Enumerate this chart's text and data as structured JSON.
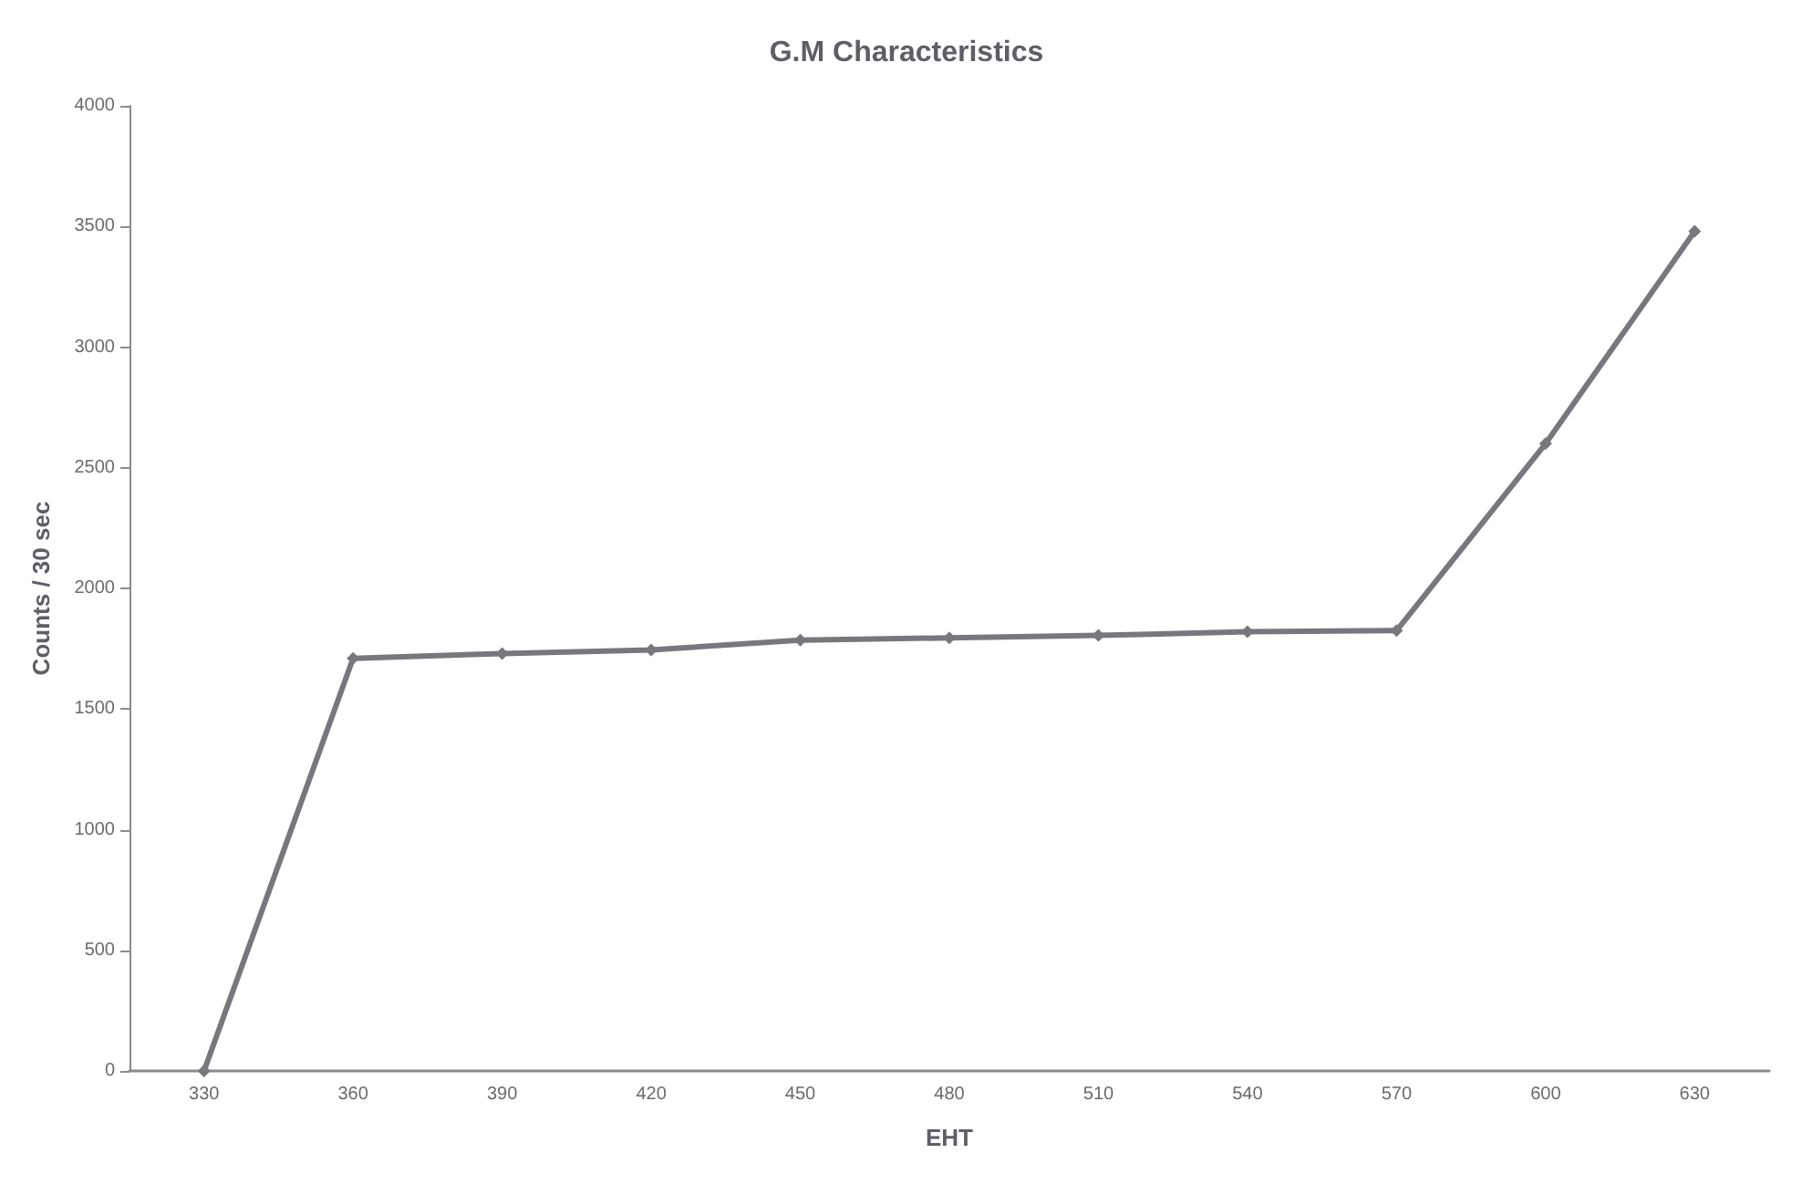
{
  "chart_data": {
    "type": "line",
    "title": "G.M Characteristics",
    "xlabel": "EHT",
    "ylabel": "Counts / 30 sec",
    "categories": [
      "330",
      "360",
      "390",
      "420",
      "450",
      "480",
      "510",
      "540",
      "570",
      "600",
      "630"
    ],
    "series": [
      {
        "color": "#77777d",
        "values": [
          0,
          1710,
          1730,
          1745,
          1785,
          1795,
          1805,
          1820,
          1825,
          2600,
          3480
        ]
      }
    ],
    "ylim": [
      0,
      4000
    ],
    "yticks": [
      0,
      500,
      1000,
      1500,
      2000,
      2500,
      3000,
      3500,
      4000
    ],
    "marker": "diamond",
    "line_style": "solid"
  }
}
